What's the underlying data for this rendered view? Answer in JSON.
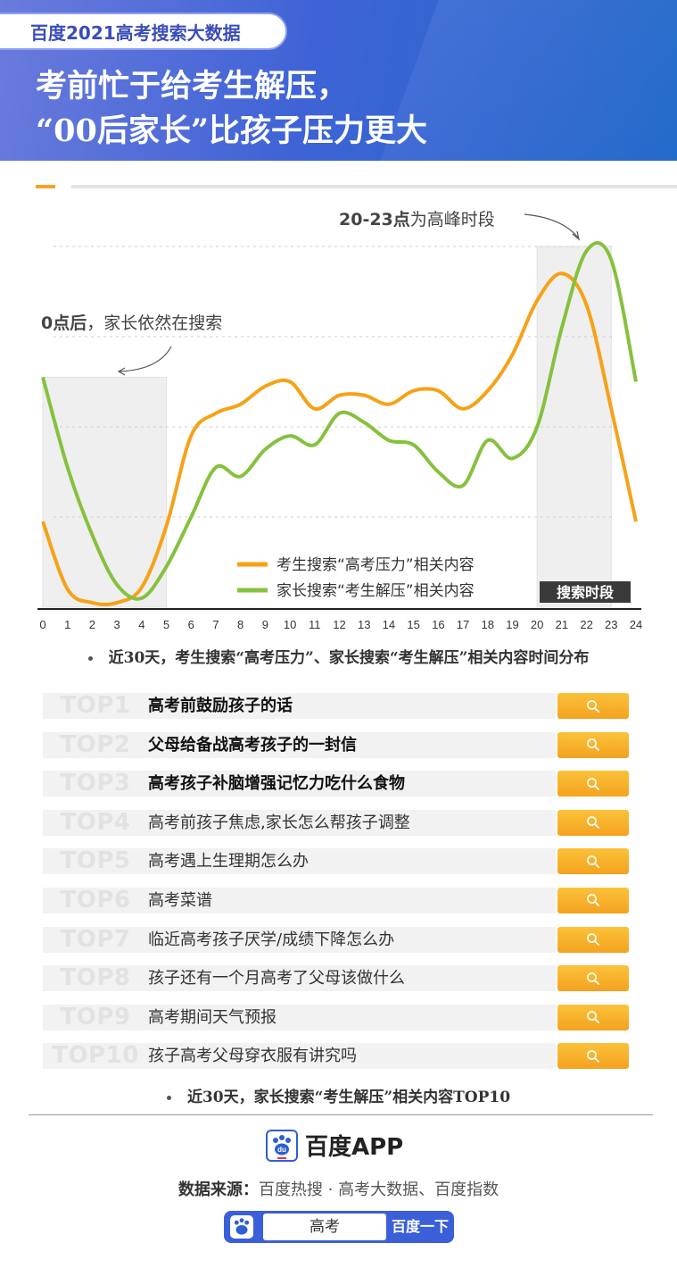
{
  "header": {
    "badge": "百度2021高考搜索大数据",
    "title_line1": "考前忙于给考生解压，",
    "title_line2": "“00后家长”比孩子压力更大"
  },
  "chart_data": {
    "type": "line",
    "x": [
      0,
      1,
      2,
      3,
      4,
      5,
      6,
      7,
      8,
      9,
      10,
      11,
      12,
      13,
      14,
      15,
      16,
      17,
      18,
      19,
      20,
      21,
      22,
      23,
      24
    ],
    "xlim": [
      0,
      24
    ],
    "ylim": [
      0,
      4
    ],
    "grid": "horizontal dashed",
    "legend_position": "bottom-right",
    "series": [
      {
        "name": "考生搜索“高考压力”相关内容",
        "color": "#f5a218",
        "values": [
          0.95,
          0.2,
          0.05,
          0.05,
          0.22,
          0.9,
          1.9,
          2.15,
          2.25,
          2.45,
          2.5,
          2.2,
          2.35,
          2.35,
          2.25,
          2.4,
          2.4,
          2.2,
          2.4,
          2.8,
          3.4,
          3.7,
          3.35,
          2.2,
          0.95
        ]
      },
      {
        "name": "家长搜索“考生解压”相关内容",
        "color": "#86c13e",
        "values": [
          2.55,
          1.55,
          0.8,
          0.25,
          0.1,
          0.45,
          1.0,
          1.55,
          1.45,
          1.75,
          1.9,
          1.8,
          2.15,
          2.05,
          1.85,
          1.8,
          1.5,
          1.35,
          1.85,
          1.65,
          2.0,
          3.1,
          3.95,
          3.85,
          2.5
        ]
      }
    ],
    "highlight_bands": [
      {
        "x_range": [
          0,
          5
        ]
      },
      {
        "x_range": [
          20,
          23
        ]
      }
    ],
    "annotations": {
      "peak": "20-23点为高峰时段",
      "peak_bold": "20-23点",
      "peak_rest": "为高峰时段",
      "night": "0点后，家长依然在搜索",
      "night_bold": "0点后",
      "night_rest": "，家长依然在搜索",
      "band_legend": "搜索时段"
    }
  },
  "chart_caption": "近30天，考生搜索“高考压力”、家长搜索“考生解压”相关内容时间分布",
  "top_list": {
    "caption": "近30天，家长搜索“考生解压”相关内容TOP10",
    "items": [
      {
        "rank": "TOP1",
        "term": "高考前鼓励孩子的话"
      },
      {
        "rank": "TOP2",
        "term": "父母给备战高考孩子的一封信"
      },
      {
        "rank": "TOP3",
        "term": "高考孩子补脑增强记忆力吃什么食物"
      },
      {
        "rank": "TOP4",
        "term": "高考前孩子焦虑,家长怎么帮孩子调整"
      },
      {
        "rank": "TOP5",
        "term": "高考遇上生理期怎么办"
      },
      {
        "rank": "TOP6",
        "term": "高考菜谱"
      },
      {
        "rank": "TOP7",
        "term": "临近高考孩子厌学/成绩下降怎么办"
      },
      {
        "rank": "TOP8",
        "term": "孩子还有一个月高考了父母该做什么"
      },
      {
        "rank": "TOP9",
        "term": "高考期间天气预报"
      },
      {
        "rank": "TOP10",
        "term": "孩子高考父母穿衣服有讲究吗"
      }
    ]
  },
  "footer": {
    "brand": "百度APP",
    "source_label": "数据来源：",
    "source_text": "百度热搜 · 高考大数据、百度指数",
    "search_query": "高考",
    "search_button": "百度一下"
  },
  "icons": {
    "search": "search-icon",
    "brand": "baidu-paw-icon"
  }
}
